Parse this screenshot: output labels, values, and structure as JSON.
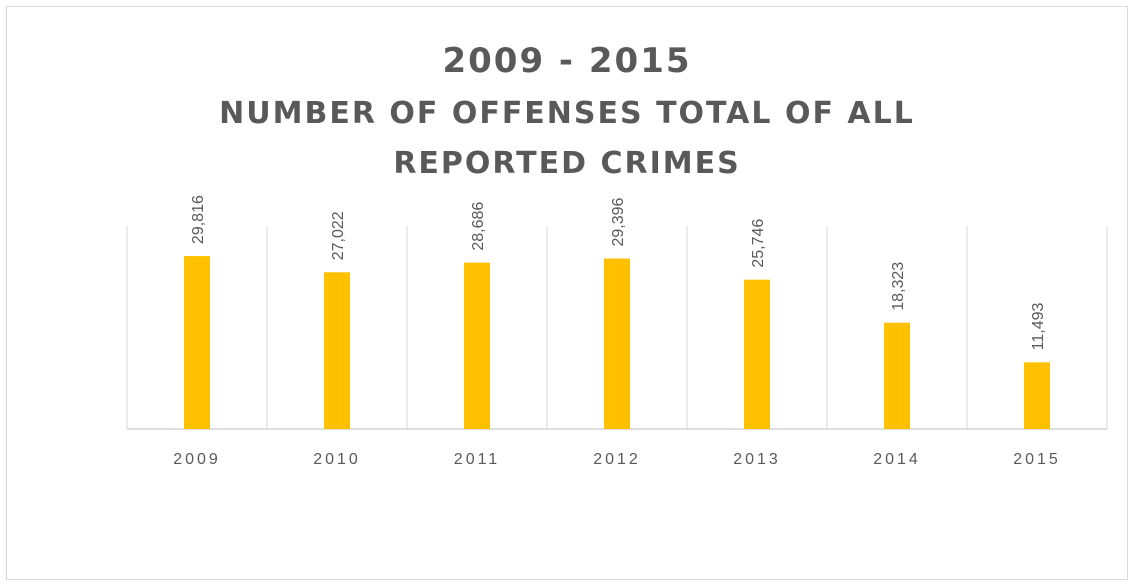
{
  "chart_data": {
    "type": "bar",
    "title_lines": [
      "2009 - 2015",
      "NUMBER OF OFFENSES TOTAL OF ALL",
      "REPORTED CRIMES"
    ],
    "categories": [
      "2009",
      "2010",
      "2011",
      "2012",
      "2013",
      "2014",
      "2015"
    ],
    "values": [
      29816,
      27022,
      28686,
      29396,
      25746,
      18323,
      11493
    ],
    "data_labels": [
      "29,816",
      "27,022",
      "28,686",
      "29,396",
      "25,746",
      "18,323",
      "11,493"
    ],
    "ylim": [
      0,
      35000
    ],
    "grid": "vertical",
    "bar_color": "#FFC000",
    "legend": "none"
  }
}
